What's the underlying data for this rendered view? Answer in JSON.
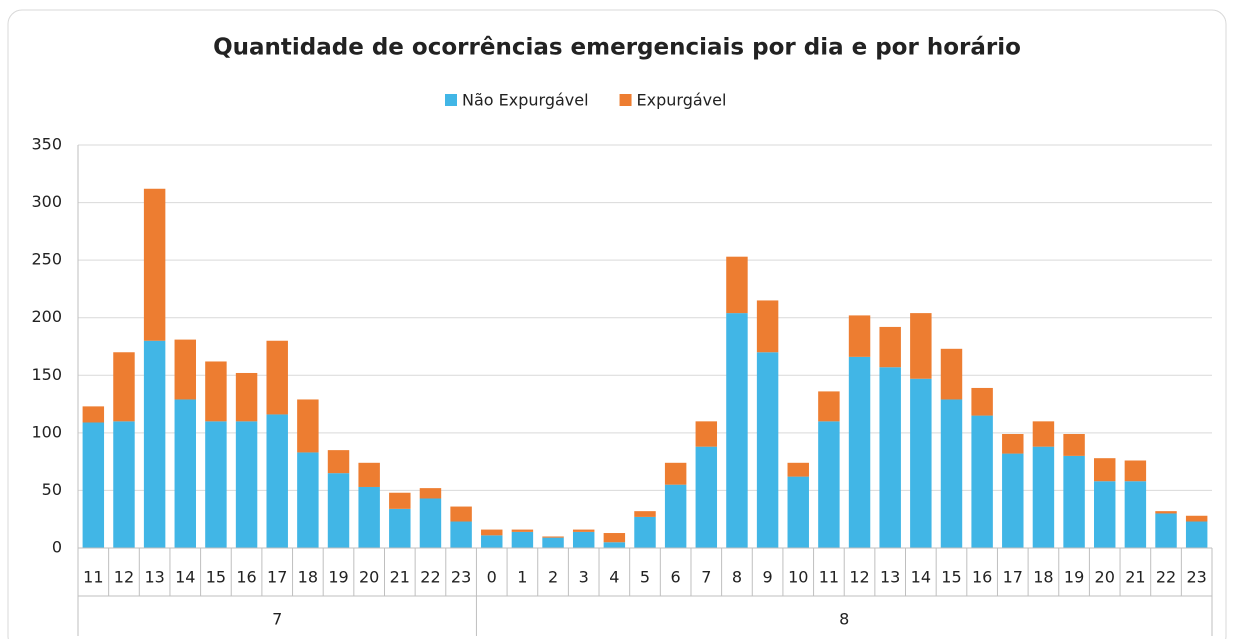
{
  "chart_data": {
    "type": "stacked_bar",
    "title": "Quantidade de ocorrências emergenciais por dia e por horário",
    "category_groups": [
      {
        "label": "7",
        "categories": [
          "11",
          "12",
          "13",
          "14",
          "15",
          "16",
          "17",
          "18",
          "19",
          "20",
          "21",
          "22",
          "23"
        ]
      },
      {
        "label": "8",
        "categories": [
          "0",
          "1",
          "2",
          "3",
          "4",
          "5",
          "6",
          "7",
          "8",
          "9",
          "10",
          "11",
          "12",
          "13",
          "14",
          "15",
          "16",
          "17",
          "18",
          "19",
          "20",
          "21",
          "22",
          "23"
        ]
      }
    ],
    "series": [
      {
        "name": "Não Expurgável",
        "color": "#41b6e6",
        "values": [
          109,
          110,
          180,
          129,
          110,
          110,
          116,
          83,
          65,
          53,
          34,
          43,
          23,
          11,
          14,
          9,
          14,
          5,
          27,
          55,
          88,
          204,
          170,
          62,
          110,
          166,
          157,
          147,
          129,
          115,
          82,
          88,
          80,
          58,
          58,
          30,
          23
        ]
      },
      {
        "name": "Expurgável",
        "color": "#ed7d31",
        "values": [
          14,
          60,
          132,
          52,
          52,
          42,
          64,
          46,
          20,
          21,
          14,
          9,
          13,
          5,
          2,
          1,
          2,
          8,
          5,
          19,
          22,
          49,
          45,
          12,
          26,
          36,
          35,
          57,
          44,
          24,
          17,
          22,
          19,
          20,
          18,
          2,
          5
        ]
      }
    ],
    "ylim": [
      0,
      350
    ],
    "yticks": [
      0,
      50,
      100,
      150,
      200,
      250,
      300,
      350
    ],
    "grid": true,
    "legend": "top"
  }
}
